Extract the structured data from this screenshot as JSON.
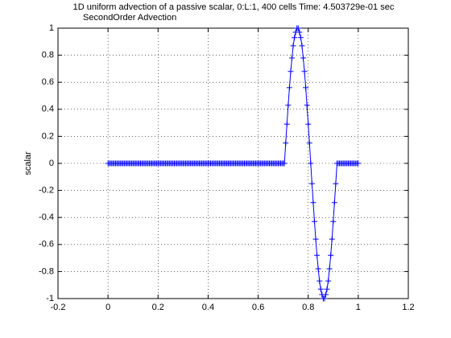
{
  "chart_data": {
    "type": "line",
    "title": "1D uniform advection of a passive scalar, 0:L:1, 400 cells Time: 4.503729e-01 sec",
    "subtitle": "SecondOrder Advection",
    "ylabel": "scalar",
    "color": "#0000ff",
    "marker": "+",
    "grid": true,
    "xlim": [
      -0.2,
      1.2
    ],
    "ylim": [
      -1,
      1
    ],
    "xticks": [
      -0.2,
      0,
      0.2,
      0.4,
      0.6,
      0.8,
      1,
      1.2
    ],
    "yticks": [
      -1,
      -0.8,
      -0.6,
      -0.4,
      -0.2,
      0,
      0.2,
      0.4,
      0.6,
      0.8,
      1
    ],
    "x": [
      0,
      0.005,
      0.01,
      0.015,
      0.02,
      0.025,
      0.03,
      0.035,
      0.04,
      0.045,
      0.05,
      0.055,
      0.06,
      0.065,
      0.07,
      0.075,
      0.08,
      0.085,
      0.09,
      0.095,
      0.1,
      0.105,
      0.11,
      0.115,
      0.12,
      0.125,
      0.13,
      0.135,
      0.14,
      0.145,
      0.15,
      0.155,
      0.16,
      0.165,
      0.17,
      0.175,
      0.18,
      0.185,
      0.19,
      0.195,
      0.2,
      0.205,
      0.21,
      0.215,
      0.22,
      0.225,
      0.23,
      0.235,
      0.24,
      0.245,
      0.25,
      0.255,
      0.26,
      0.265,
      0.27,
      0.275,
      0.28,
      0.285,
      0.29,
      0.295,
      0.3,
      0.305,
      0.31,
      0.315,
      0.32,
      0.325,
      0.33,
      0.335,
      0.34,
      0.345,
      0.35,
      0.355,
      0.36,
      0.365,
      0.37,
      0.375,
      0.38,
      0.385,
      0.39,
      0.395,
      0.4,
      0.405,
      0.41,
      0.415,
      0.42,
      0.425,
      0.43,
      0.435,
      0.44,
      0.445,
      0.45,
      0.455,
      0.46,
      0.465,
      0.47,
      0.475,
      0.48,
      0.485,
      0.49,
      0.495,
      0.5,
      0.505,
      0.51,
      0.515,
      0.52,
      0.525,
      0.53,
      0.535,
      0.54,
      0.545,
      0.55,
      0.555,
      0.56,
      0.565,
      0.57,
      0.575,
      0.58,
      0.585,
      0.59,
      0.595,
      0.6,
      0.605,
      0.61,
      0.615,
      0.62,
      0.625,
      0.63,
      0.635,
      0.64,
      0.645,
      0.65,
      0.655,
      0.66,
      0.665,
      0.67,
      0.675,
      0.68,
      0.685,
      0.69,
      0.695,
      0.7,
      0.705,
      0.71,
      0.715,
      0.72,
      0.725,
      0.73,
      0.735,
      0.74,
      0.745,
      0.75,
      0.755,
      0.76,
      0.765,
      0.77,
      0.775,
      0.78,
      0.785,
      0.79,
      0.795,
      0.8,
      0.805,
      0.81,
      0.815,
      0.82,
      0.825,
      0.83,
      0.835,
      0.84,
      0.845,
      0.85,
      0.855,
      0.86,
      0.865,
      0.87,
      0.875,
      0.88,
      0.885,
      0.89,
      0.895,
      0.9,
      0.905,
      0.91,
      0.915,
      0.92,
      0.925,
      0.93,
      0.935,
      0.94,
      0.945,
      0.95,
      0.955,
      0.96,
      0.965,
      0.97,
      0.975,
      0.98,
      0.985,
      0.99,
      0.995,
      1
    ],
    "values": [
      0,
      0,
      0,
      0,
      0,
      0,
      0,
      0,
      0,
      0,
      0,
      0,
      0,
      0,
      0,
      0,
      0,
      0,
      0,
      0,
      0,
      0,
      0,
      0,
      0,
      0,
      0,
      0,
      0,
      0,
      0,
      0,
      0,
      0,
      0,
      0,
      0,
      0,
      0,
      0,
      0,
      0,
      0,
      0,
      0,
      0,
      0,
      0,
      0,
      0,
      0,
      0,
      0,
      0,
      0,
      0,
      0,
      0,
      0,
      0,
      0,
      0,
      0,
      0,
      0,
      0,
      0,
      0,
      0,
      0,
      0,
      0,
      0,
      0,
      0,
      0,
      0,
      0,
      0,
      0,
      0,
      0,
      0,
      0,
      0,
      0,
      0,
      0,
      0,
      0,
      0,
      0,
      0,
      0,
      0,
      0,
      0,
      0,
      0,
      0,
      0,
      0,
      0,
      0,
      0,
      0,
      0,
      0,
      0,
      0,
      0,
      0,
      0,
      0,
      0,
      0,
      0,
      0,
      0,
      0,
      0,
      0,
      0,
      0,
      0,
      0,
      0,
      0,
      0,
      0,
      0,
      0,
      0,
      0,
      0,
      0,
      0,
      0,
      0,
      0,
      0,
      0,
      0.15,
      0.29,
      0.43,
      0.56,
      0.68,
      0.78,
      0.87,
      0.93,
      0.97,
      1,
      1,
      0.97,
      0.93,
      0.87,
      0.78,
      0.68,
      0.56,
      0.43,
      0.29,
      0.15,
      0,
      -0.15,
      -0.29,
      -0.43,
      -0.56,
      -0.68,
      -0.78,
      -0.87,
      -0.93,
      -0.97,
      -1,
      -1,
      -0.97,
      -0.93,
      -0.87,
      -0.78,
      -0.68,
      -0.56,
      -0.43,
      -0.29,
      -0.15,
      0,
      0,
      0,
      0,
      0,
      0,
      0,
      0,
      0,
      0,
      0,
      0,
      0,
      0,
      0,
      0,
      0,
      0
    ]
  }
}
